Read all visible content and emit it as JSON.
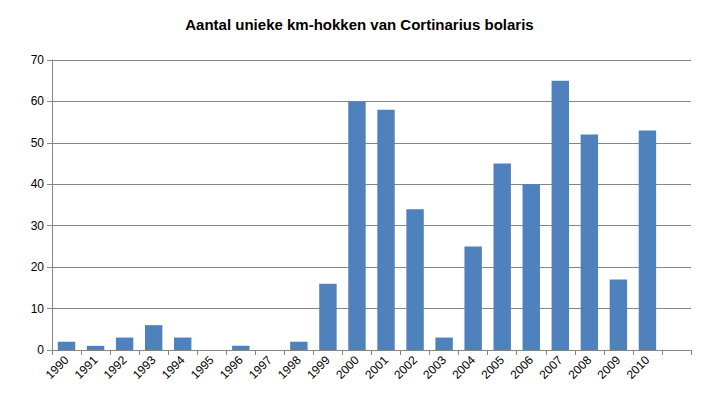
{
  "chart_data": {
    "type": "bar",
    "title": "Aantal unieke km-hokken van Cortinarius bolaris",
    "categories": [
      "1990",
      "1991",
      "1992",
      "1993",
      "1994",
      "1995",
      "1996",
      "1997",
      "1998",
      "1999",
      "2000",
      "2001",
      "2002",
      "2003",
      "2004",
      "2005",
      "2006",
      "2007",
      "2008",
      "2009",
      "2010",
      null
    ],
    "values": [
      2,
      1,
      3,
      6,
      3,
      0,
      1,
      0,
      2,
      16,
      60,
      58,
      34,
      3,
      25,
      45,
      40,
      65,
      52,
      17,
      53,
      null
    ],
    "color": "#4f81bd",
    "ylim": [
      0,
      70
    ],
    "yticks": [
      0,
      10,
      20,
      30,
      40,
      50,
      60,
      70
    ],
    "grid": true
  }
}
